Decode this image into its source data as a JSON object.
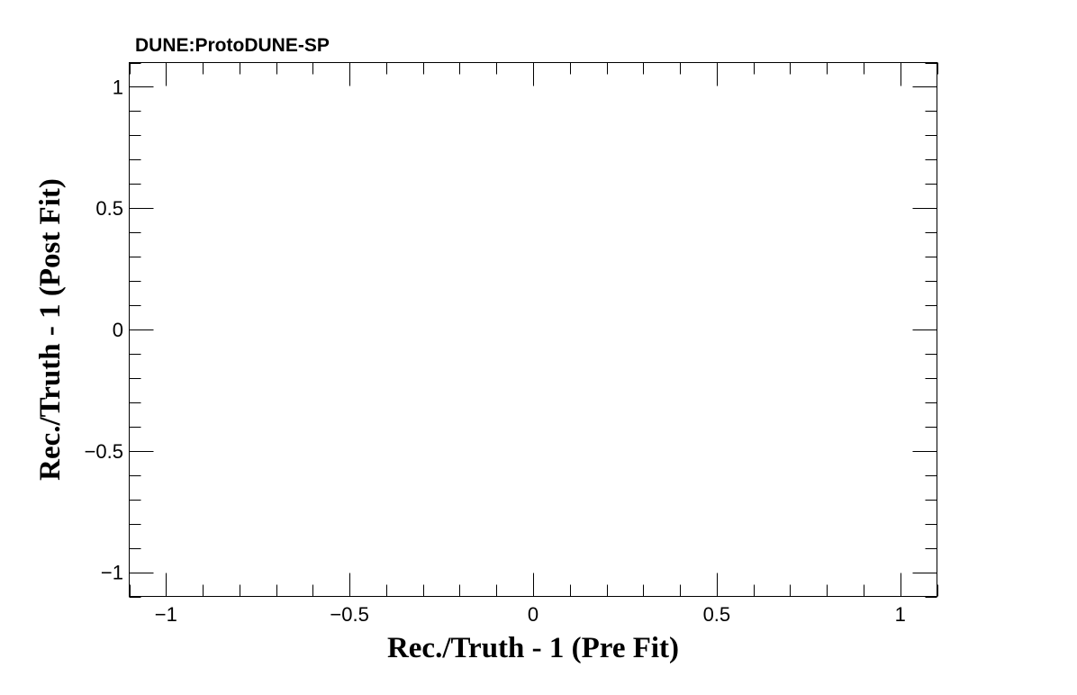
{
  "chart_data": {
    "type": "scatter",
    "title": "DUNE:ProtoDUNE-SP",
    "xlabel": "Rec./Truth - 1 (Pre Fit)",
    "ylabel": "Rec./Truth - 1 (Post Fit)",
    "xlim": [
      -1.1,
      1.1
    ],
    "ylim": [
      -1.1,
      1.1
    ],
    "x_ticks": [
      {
        "value": -1,
        "label": "−1"
      },
      {
        "value": -0.5,
        "label": "−0.5"
      },
      {
        "value": 0,
        "label": "0"
      },
      {
        "value": 0.5,
        "label": "0.5"
      },
      {
        "value": 1,
        "label": "1"
      }
    ],
    "y_ticks": [
      {
        "value": 1,
        "label": "1"
      },
      {
        "value": 0.5,
        "label": "0.5"
      },
      {
        "value": 0,
        "label": "0"
      },
      {
        "value": -0.5,
        "label": "−0.5"
      },
      {
        "value": -1,
        "label": "−1"
      }
    ],
    "minor_tick_step": 0.1,
    "grid": false,
    "series": [],
    "frame_color": "#000000",
    "background": "#ffffff"
  }
}
